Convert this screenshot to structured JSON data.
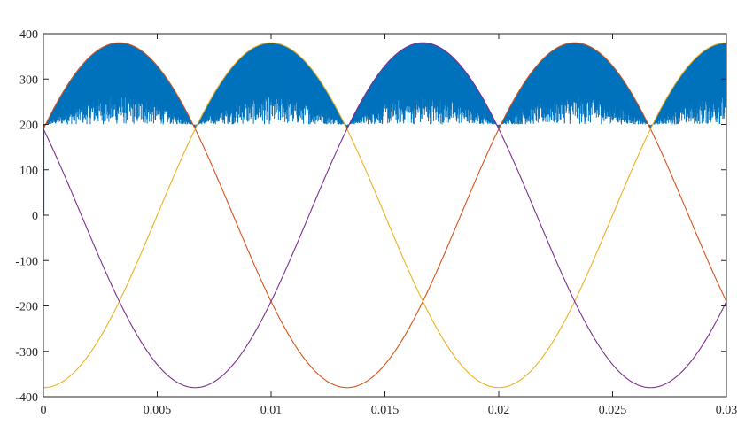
{
  "chart_data": {
    "type": "line",
    "title": "",
    "xlabel": "",
    "ylabel": "",
    "xlim": [
      0,
      0.03
    ],
    "ylim": [
      -400,
      400
    ],
    "grid": false,
    "legend": "none",
    "x_ticks": [
      0,
      0.005,
      0.01,
      0.015,
      0.02,
      0.025,
      0.03
    ],
    "x_tick_labels": [
      "0",
      "0.005",
      "0.01",
      "0.015",
      "0.02",
      "0.025",
      "0.03"
    ],
    "y_ticks": [
      -400,
      -300,
      -200,
      -100,
      0,
      100,
      200,
      300,
      400
    ],
    "y_tick_labels": [
      "-400",
      "-300",
      "-200",
      "-100",
      "0",
      "100",
      "200",
      "300",
      "400"
    ],
    "series": [
      {
        "type": "line",
        "color": "#D95319",
        "amplitude": 380,
        "frequency_hz": 50,
        "phase_deg": 30
      },
      {
        "type": "line",
        "color": "#EDB120",
        "amplitude": 380,
        "frequency_hz": 50,
        "phase_deg": -90
      },
      {
        "type": "line",
        "color": "#7E2F8E",
        "amplitude": 380,
        "frequency_hz": 50,
        "phase_deg": 150
      },
      {
        "type": "pwm_stem",
        "color": "#0072BD",
        "envelope": "max of three phases",
        "switching_hz": 20000,
        "y_at_x0": 0
      }
    ]
  }
}
